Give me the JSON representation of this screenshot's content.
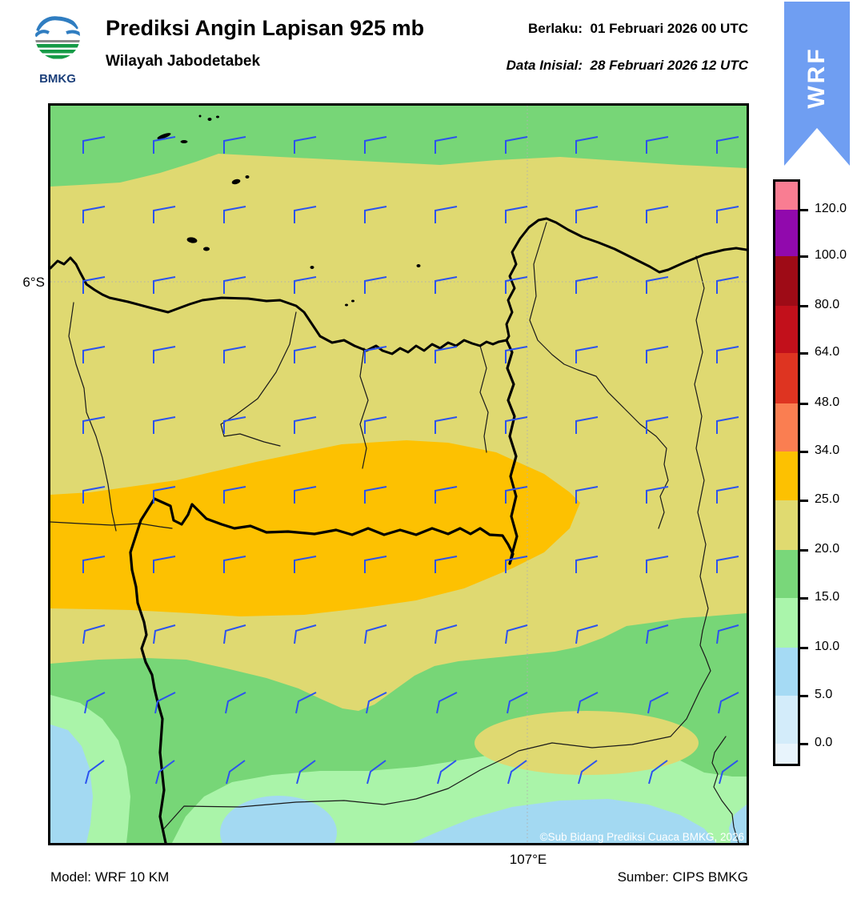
{
  "header": {
    "title": "Prediksi Angin Lapisan 925 mb",
    "subtitle": "Wilayah Jabodetabek",
    "logo_text": "BMKG",
    "valid_label": "Berlaku:",
    "valid_value": "01 Februari 2026 00 UTC",
    "init_label": "Data Inisial:",
    "init_value": "28 Februari 2026 12 UTC",
    "ribbon_text": "WRF"
  },
  "map": {
    "lat_label": "6°S",
    "lon_label": "107°E",
    "copyright": "©Sub Bidang Prediksi Cuaca BMKG, 2026"
  },
  "footer": {
    "model": "Model: WRF 10 KM",
    "source": "Sumber: CIPS BMKG"
  },
  "colorbar": {
    "tick_labels": [
      "120.0",
      "100.0",
      "80.0",
      "64.0",
      "48.0",
      "34.0",
      "25.0",
      "20.0",
      "15.0",
      "10.0",
      "5.0",
      "0.0"
    ],
    "colors": [
      "#f97d92",
      "#9109ad",
      "#9e0b16",
      "#c2101b",
      "#de3421",
      "#fa7e51",
      "#fdc101",
      "#e0da70",
      "#79d77a",
      "#aaf5ab",
      "#a5daf4",
      "#d3ecfa",
      "#e8f4fc"
    ]
  },
  "map_colors": {
    "khaki": "#dfd971",
    "amber": "#fdc101",
    "green": "#77d677",
    "light_green": "#aaf4a9",
    "light_blue": "#a3d9f2",
    "barb": "#2b52ef",
    "ribbon": "#6f9ef2",
    "grid": "#b0b0b0"
  }
}
